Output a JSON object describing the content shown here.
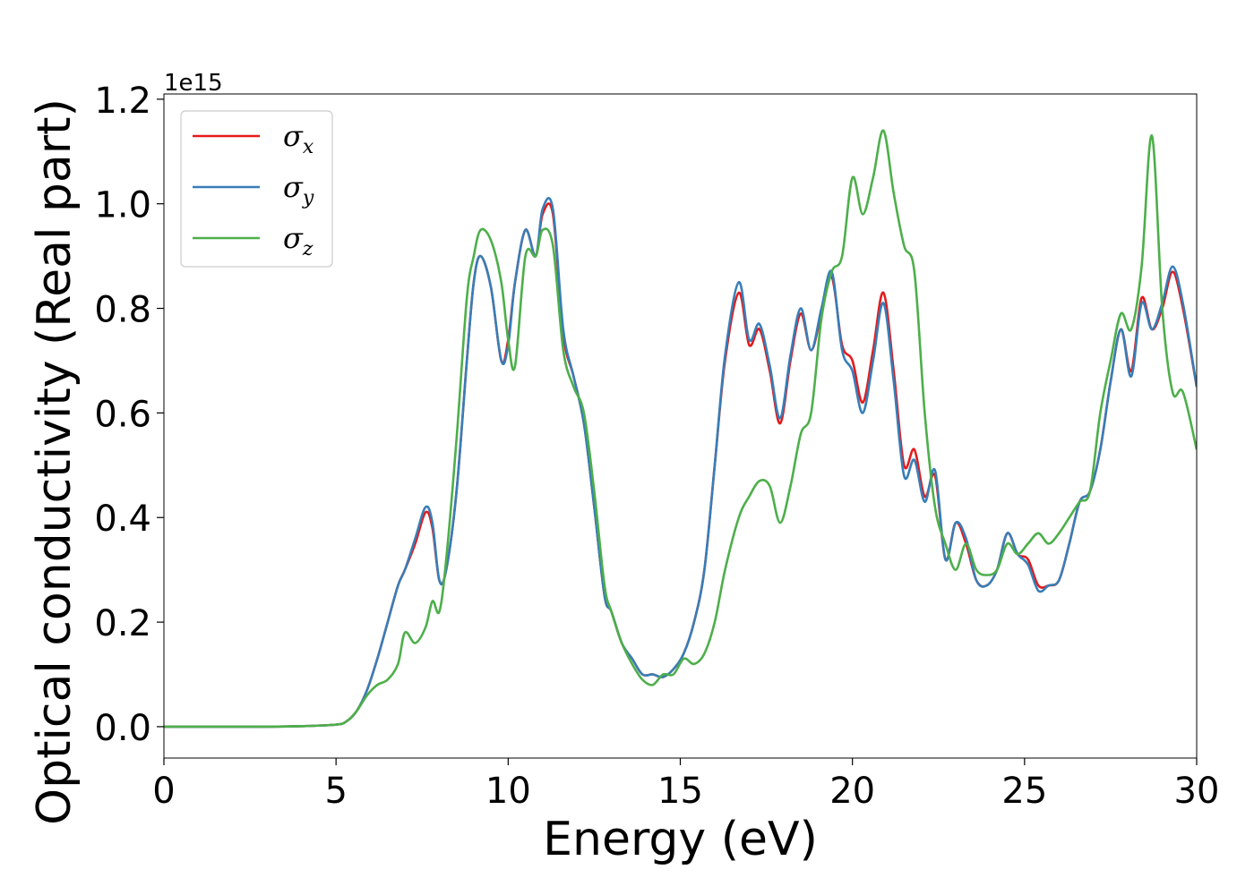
{
  "chart_data": {
    "type": "line",
    "title": "",
    "xlabel": "Energy (eV)",
    "ylabel": "Optical conductivity (Real part)",
    "y_offset_text": "1e15",
    "xlim": [
      0,
      30
    ],
    "ylim": [
      -0.06,
      1.21
    ],
    "xticks": [
      0,
      5,
      10,
      15,
      20,
      25,
      30
    ],
    "yticks": [
      0.0,
      0.2,
      0.4,
      0.6,
      0.8,
      1.0,
      1.2
    ],
    "ytick_labels": [
      "0.0",
      "0.2",
      "0.4",
      "0.6",
      "0.8",
      "1.0",
      "1.2"
    ],
    "grid": false,
    "legend_position": "upper-left",
    "x": [
      0,
      1,
      2,
      3,
      4,
      5,
      5.3,
      5.6,
      5.9,
      6.2,
      6.5,
      6.8,
      7.0,
      7.3,
      7.6,
      7.8,
      8.0,
      8.2,
      8.5,
      8.8,
      9.0,
      9.2,
      9.5,
      9.8,
      10.0,
      10.2,
      10.5,
      10.8,
      11.0,
      11.3,
      11.6,
      11.9,
      12.2,
      12.5,
      12.8,
      13.0,
      13.3,
      13.6,
      13.9,
      14.2,
      14.5,
      14.8,
      15.1,
      15.4,
      15.7,
      16.0,
      16.3,
      16.7,
      17.0,
      17.3,
      17.6,
      17.9,
      18.2,
      18.5,
      18.8,
      19.1,
      19.4,
      19.7,
      20.0,
      20.3,
      20.6,
      20.9,
      21.2,
      21.5,
      21.8,
      22.1,
      22.4,
      22.7,
      23.0,
      23.3,
      23.6,
      23.9,
      24.2,
      24.5,
      24.8,
      25.1,
      25.4,
      25.7,
      26.0,
      26.3,
      26.6,
      26.9,
      27.2,
      27.5,
      27.8,
      28.1,
      28.4,
      28.7,
      29.0,
      29.3,
      29.6,
      30.0
    ],
    "series": [
      {
        "name": "σx",
        "color": "#e41a1c",
        "values": [
          0,
          0,
          0,
          0,
          0.001,
          0.004,
          0.01,
          0.03,
          0.07,
          0.13,
          0.2,
          0.27,
          0.3,
          0.35,
          0.41,
          0.38,
          0.28,
          0.3,
          0.45,
          0.7,
          0.85,
          0.9,
          0.84,
          0.7,
          0.74,
          0.85,
          0.95,
          0.9,
          0.98,
          0.98,
          0.75,
          0.67,
          0.58,
          0.42,
          0.25,
          0.22,
          0.16,
          0.13,
          0.1,
          0.1,
          0.095,
          0.11,
          0.14,
          0.2,
          0.3,
          0.5,
          0.7,
          0.83,
          0.73,
          0.76,
          0.68,
          0.58,
          0.7,
          0.79,
          0.72,
          0.79,
          0.86,
          0.73,
          0.7,
          0.62,
          0.72,
          0.83,
          0.68,
          0.5,
          0.53,
          0.44,
          0.48,
          0.32,
          0.39,
          0.35,
          0.28,
          0.27,
          0.3,
          0.37,
          0.33,
          0.32,
          0.27,
          0.27,
          0.28,
          0.35,
          0.43,
          0.45,
          0.53,
          0.66,
          0.76,
          0.68,
          0.82,
          0.76,
          0.8,
          0.87,
          0.8,
          0.65
        ]
      },
      {
        "name": "σy",
        "color": "#377eb8",
        "values": [
          0,
          0,
          0,
          0,
          0.001,
          0.004,
          0.01,
          0.03,
          0.07,
          0.13,
          0.2,
          0.27,
          0.3,
          0.36,
          0.42,
          0.39,
          0.28,
          0.3,
          0.45,
          0.7,
          0.85,
          0.9,
          0.84,
          0.7,
          0.73,
          0.85,
          0.95,
          0.9,
          0.99,
          0.99,
          0.76,
          0.67,
          0.58,
          0.42,
          0.25,
          0.22,
          0.16,
          0.13,
          0.1,
          0.1,
          0.095,
          0.11,
          0.14,
          0.2,
          0.3,
          0.5,
          0.71,
          0.85,
          0.74,
          0.77,
          0.69,
          0.59,
          0.71,
          0.8,
          0.72,
          0.8,
          0.87,
          0.72,
          0.68,
          0.6,
          0.7,
          0.81,
          0.66,
          0.48,
          0.51,
          0.43,
          0.49,
          0.32,
          0.39,
          0.36,
          0.28,
          0.27,
          0.3,
          0.37,
          0.33,
          0.31,
          0.26,
          0.27,
          0.28,
          0.35,
          0.43,
          0.45,
          0.53,
          0.66,
          0.76,
          0.67,
          0.81,
          0.76,
          0.81,
          0.88,
          0.81,
          0.65
        ]
      },
      {
        "name": "σz",
        "color": "#4daf4a",
        "values": [
          0,
          0,
          0,
          0,
          0.001,
          0.004,
          0.01,
          0.03,
          0.06,
          0.08,
          0.09,
          0.12,
          0.18,
          0.16,
          0.19,
          0.24,
          0.22,
          0.32,
          0.55,
          0.82,
          0.9,
          0.95,
          0.93,
          0.85,
          0.74,
          0.69,
          0.9,
          0.9,
          0.95,
          0.92,
          0.72,
          0.65,
          0.6,
          0.45,
          0.27,
          0.22,
          0.16,
          0.12,
          0.09,
          0.08,
          0.1,
          0.1,
          0.13,
          0.12,
          0.14,
          0.2,
          0.3,
          0.4,
          0.44,
          0.47,
          0.46,
          0.39,
          0.46,
          0.56,
          0.6,
          0.78,
          0.87,
          0.9,
          1.05,
          0.98,
          1.05,
          1.14,
          1.02,
          0.92,
          0.87,
          0.6,
          0.42,
          0.35,
          0.3,
          0.35,
          0.3,
          0.29,
          0.3,
          0.35,
          0.33,
          0.35,
          0.37,
          0.35,
          0.37,
          0.4,
          0.43,
          0.45,
          0.6,
          0.7,
          0.79,
          0.76,
          0.88,
          1.13,
          0.8,
          0.64,
          0.64,
          0.53
        ]
      }
    ]
  }
}
